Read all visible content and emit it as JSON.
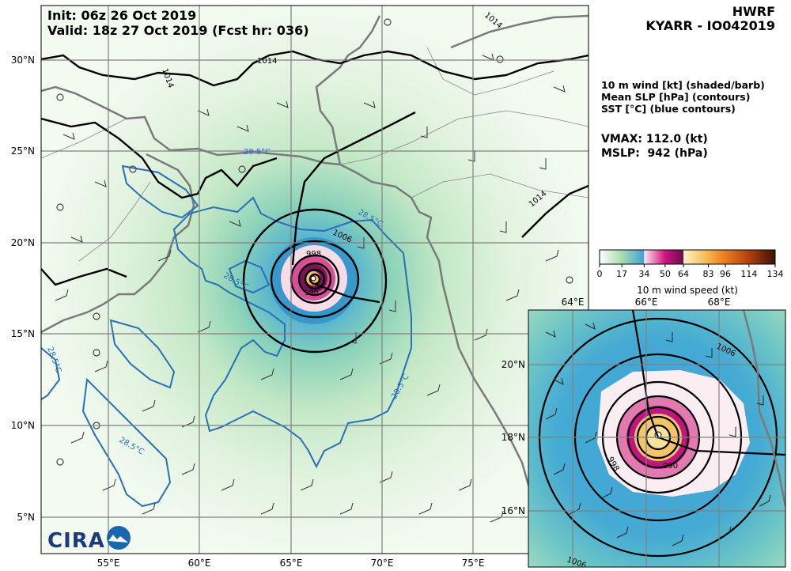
{
  "header": {
    "init": "Init:   06z 26 Oct 2019",
    "valid": "Valid: 18z 27 Oct 2019 (Fcst hr: 036)",
    "model": "HWRF",
    "storm": "KYARR - IO042019"
  },
  "legend": {
    "fields": [
      "10 m wind [kt] (shaded/barb)",
      "Mean SLP [hPa] (contours)",
      "SST [°C] (blue contours)"
    ],
    "vmax": "VMAX: 112.0 (kt)",
    "mslp": "MSLP:  942 (hPa)"
  },
  "colorbar": {
    "label": "10 m wind speed (kt)",
    "ticks": [
      "0",
      "17",
      "34",
      "50",
      "64",
      "83",
      "96",
      "114",
      "134"
    ],
    "tick_values": [
      0,
      17,
      34,
      50,
      64,
      83,
      96,
      114,
      134
    ],
    "max": 134,
    "stops": [
      {
        "v": 0,
        "c": "#ffffff"
      },
      {
        "v": 17,
        "c": "#a9dcb0"
      },
      {
        "v": 33.9,
        "c": "#3ea3d6"
      },
      {
        "v": 34,
        "c": "#fbe7ef"
      },
      {
        "v": 50,
        "c": "#d0137e"
      },
      {
        "v": 63.9,
        "c": "#6a0f4f"
      },
      {
        "v": 64,
        "c": "#fff3c4"
      },
      {
        "v": 83,
        "c": "#f4b54c"
      },
      {
        "v": 96,
        "c": "#eb7a1f"
      },
      {
        "v": 114,
        "c": "#b3400d"
      },
      {
        "v": 134,
        "c": "#3a1204"
      }
    ]
  },
  "main_map": {
    "lat_labels": [
      "30°N",
      "25°N",
      "20°N",
      "15°N",
      "10°N",
      "5°N"
    ],
    "lon_labels": [
      "55°E",
      "60°E",
      "65°E",
      "70°E",
      "75°E"
    ],
    "slp_labels": [
      "1014",
      "1014",
      "1014",
      "1014",
      "1006",
      "998",
      "990"
    ],
    "sst_labels": [
      "28.5°C",
      "28.5°C",
      "28.5°C",
      "28.5°C",
      "28.5°C",
      "28.5°C"
    ]
  },
  "inset_map": {
    "lat_labels": [
      "20°N",
      "18°N",
      "16°N"
    ],
    "lon_labels": [
      "64°E",
      "66°E",
      "68°E"
    ],
    "slp_labels": [
      "1006",
      "998",
      "990",
      "1006"
    ]
  },
  "logo": {
    "text": "CIRA"
  },
  "colors": {
    "slp": "#000000",
    "sst": "#2a6fb8",
    "coast": "#7a7a7a",
    "grid": "#808080"
  }
}
